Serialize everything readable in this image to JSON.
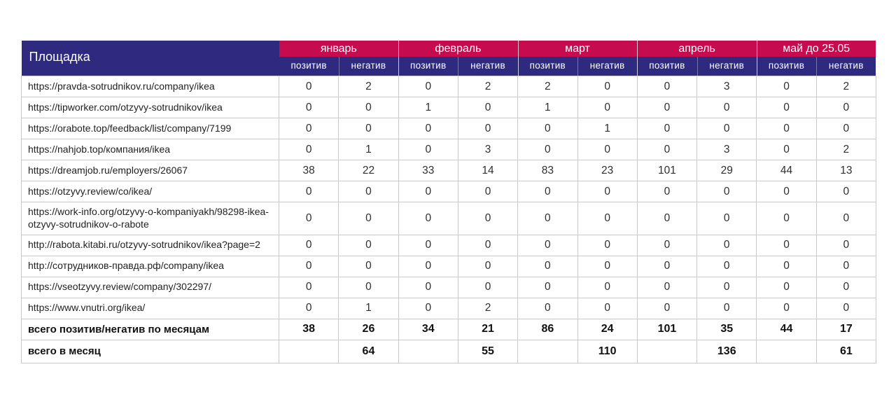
{
  "table": {
    "platform_header": "Площадка",
    "months": [
      "январь",
      "февраль",
      "март",
      "апрель",
      "май до 25.05"
    ],
    "subheaders": {
      "positive": "позитив",
      "negative": "негатив"
    },
    "rows": [
      {
        "url": "https://pravda-sotrudnikov.ru/company/ikea",
        "values": [
          0,
          2,
          0,
          2,
          2,
          0,
          0,
          3,
          0,
          2
        ]
      },
      {
        "url": "https://tipworker.com/otzyvy-sotrudnikov/ikea",
        "values": [
          0,
          0,
          1,
          0,
          1,
          0,
          0,
          0,
          0,
          0
        ]
      },
      {
        "url": "https://orabote.top/feedback/list/company/7199",
        "values": [
          0,
          0,
          0,
          0,
          0,
          1,
          0,
          0,
          0,
          0
        ]
      },
      {
        "url": "https://nahjob.top/компания/ikea",
        "values": [
          0,
          1,
          0,
          3,
          0,
          0,
          0,
          3,
          0,
          2
        ]
      },
      {
        "url": "https://dreamjob.ru/employers/26067",
        "values": [
          38,
          22,
          33,
          14,
          83,
          23,
          101,
          29,
          44,
          13
        ]
      },
      {
        "url": "https://otzyvy.review/co/ikea/",
        "values": [
          0,
          0,
          0,
          0,
          0,
          0,
          0,
          0,
          0,
          0
        ]
      },
      {
        "url": "https://work-info.org/otzyvy-o-kompaniyakh/98298-ikea-otzyvy-sotrudnikov-o-rabote",
        "values": [
          0,
          0,
          0,
          0,
          0,
          0,
          0,
          0,
          0,
          0
        ]
      },
      {
        "url": "http://rabota.kitabi.ru/otzyvy-sotrudnikov/ikea?page=2",
        "values": [
          0,
          0,
          0,
          0,
          0,
          0,
          0,
          0,
          0,
          0
        ]
      },
      {
        "url": "http://сотрудников-правда.рф/company/ikea",
        "values": [
          0,
          0,
          0,
          0,
          0,
          0,
          0,
          0,
          0,
          0
        ]
      },
      {
        "url": "https://vseotzyvy.review/company/302297/",
        "values": [
          0,
          0,
          0,
          0,
          0,
          0,
          0,
          0,
          0,
          0
        ]
      },
      {
        "url": "https://www.vnutri.org/ikea/",
        "values": [
          0,
          1,
          0,
          2,
          0,
          0,
          0,
          0,
          0,
          0
        ]
      }
    ],
    "totals_row": {
      "label": "всего позитив/негатив по месяцам",
      "values": [
        38,
        26,
        34,
        21,
        86,
        24,
        101,
        35,
        44,
        17
      ]
    },
    "monthly_totals_row": {
      "label": "всего в месяц",
      "values": [
        "",
        64,
        "",
        55,
        "",
        110,
        "",
        136,
        "",
        61
      ]
    }
  },
  "colors": {
    "header_blue": "#2e2a80",
    "header_red": "#c60b4e",
    "grid_line": "#c9c9c9"
  }
}
